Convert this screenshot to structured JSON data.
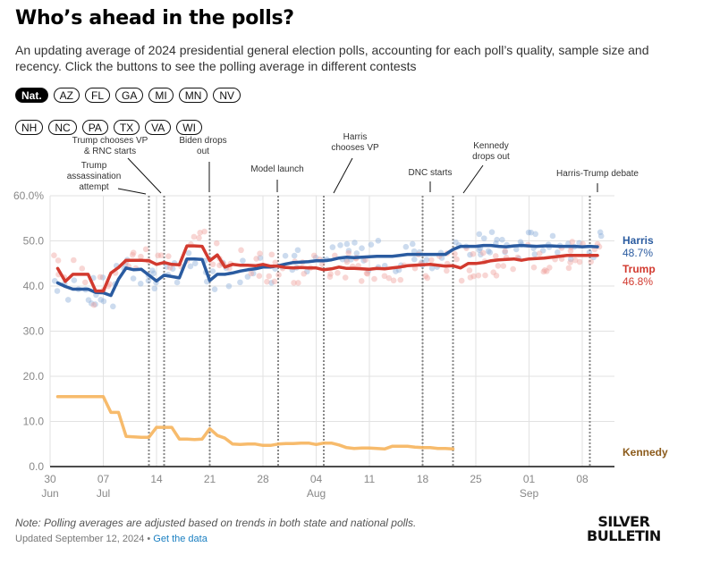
{
  "header": {
    "title": "Who’s ahead in the polls?",
    "subtitle": "An updating average of 2024 presidential general election polls, accounting for each poll’s quality, sample size and recency. Click the buttons to see the polling average in different contests"
  },
  "contest_buttons": {
    "row1": [
      {
        "label": "Nat.",
        "active": true
      },
      {
        "label": "AZ",
        "active": false
      },
      {
        "label": "FL",
        "active": false
      },
      {
        "label": "GA",
        "active": false
      },
      {
        "label": "MI",
        "active": false
      },
      {
        "label": "MN",
        "active": false
      },
      {
        "label": "NV",
        "active": false
      }
    ],
    "row2": [
      {
        "label": "NH",
        "active": false
      },
      {
        "label": "NC",
        "active": false
      },
      {
        "label": "PA",
        "active": false
      },
      {
        "label": "TX",
        "active": false
      },
      {
        "label": "VA",
        "active": false
      },
      {
        "label": "WI",
        "active": false
      }
    ]
  },
  "chart_data": {
    "type": "line",
    "title": "",
    "xlabel": "",
    "ylabel": "",
    "x_start": "2024-06-30",
    "x_range_days": [
      0,
      73
    ],
    "ylim": [
      0,
      60
    ],
    "y_ticks": [
      {
        "value": 60,
        "label": "60.0%"
      },
      {
        "value": 50,
        "label": "50.0"
      },
      {
        "value": 40,
        "label": "40.0"
      },
      {
        "value": 30,
        "label": "30.0"
      },
      {
        "value": 20,
        "label": "20.0"
      },
      {
        "value": 10,
        "label": "10.0"
      },
      {
        "value": 0,
        "label": "0.0"
      }
    ],
    "x_ticks": [
      {
        "day": 0,
        "label": "30",
        "month": "Jun"
      },
      {
        "day": 7,
        "label": "07",
        "month": "Jul"
      },
      {
        "day": 14,
        "label": "14",
        "month": ""
      },
      {
        "day": 21,
        "label": "21",
        "month": ""
      },
      {
        "day": 28,
        "label": "28",
        "month": ""
      },
      {
        "day": 35,
        "label": "04",
        "month": "Aug"
      },
      {
        "day": 42,
        "label": "11",
        "month": ""
      },
      {
        "day": 49,
        "label": "18",
        "month": ""
      },
      {
        "day": 56,
        "label": "25",
        "month": ""
      },
      {
        "day": 63,
        "label": "01",
        "month": "Sep"
      },
      {
        "day": 70,
        "label": "08",
        "month": ""
      }
    ],
    "grid": true,
    "series": [
      {
        "name": "Harris",
        "end_label": "48.7%",
        "color": "#2a5ba0",
        "dot_color": "#8fb0da",
        "x": [
          1,
          2,
          3,
          4,
          5,
          6,
          7,
          8,
          9,
          10,
          11,
          12,
          13,
          14,
          15,
          16,
          17,
          18,
          19,
          20,
          21,
          22,
          23,
          24,
          25,
          26,
          27,
          28,
          29,
          30,
          31,
          32,
          33,
          34,
          35,
          36,
          37,
          38,
          39,
          40,
          41,
          42,
          43,
          44,
          45,
          46,
          47,
          48,
          49,
          50,
          51,
          52,
          53,
          54,
          55,
          56,
          57,
          58,
          59,
          60,
          61,
          62,
          63,
          64,
          65,
          66,
          67,
          68,
          69,
          70,
          71,
          72
        ],
        "values": [
          40.7,
          39.9,
          39.3,
          39.3,
          39.3,
          38.6,
          38.5,
          37.9,
          41.5,
          44.0,
          43.6,
          43.7,
          42.4,
          41.1,
          42.4,
          42.1,
          41.8,
          46.0,
          46.0,
          45.9,
          41.2,
          42.6,
          42.6,
          42.9,
          43.3,
          43.6,
          43.8,
          44.2,
          44.2,
          44.5,
          44.9,
          45.2,
          45.3,
          45.4,
          45.6,
          45.6,
          45.8,
          46.2,
          46.4,
          46.3,
          46.4,
          46.5,
          46.6,
          46.6,
          46.6,
          46.8,
          47.0,
          47.0,
          47.0,
          47.0,
          47.0,
          47.0,
          48.1,
          48.8,
          48.8,
          48.8,
          49.0,
          49.0,
          48.8,
          48.7,
          48.9,
          49.0,
          48.9,
          48.8,
          48.9,
          48.9,
          48.8,
          48.8,
          48.8,
          48.7,
          48.8,
          48.7
        ]
      },
      {
        "name": "Trump",
        "end_label": "46.8%",
        "color": "#d23a2f",
        "dot_color": "#f0a5a0",
        "x": [
          1,
          2,
          3,
          4,
          5,
          6,
          7,
          8,
          9,
          10,
          11,
          12,
          13,
          14,
          15,
          16,
          17,
          18,
          19,
          20,
          21,
          22,
          23,
          24,
          25,
          26,
          27,
          28,
          29,
          30,
          31,
          32,
          33,
          34,
          35,
          36,
          37,
          38,
          39,
          40,
          41,
          42,
          43,
          44,
          45,
          46,
          47,
          48,
          49,
          50,
          51,
          52,
          53,
          54,
          55,
          56,
          57,
          58,
          59,
          60,
          61,
          62,
          63,
          64,
          65,
          66,
          67,
          68,
          69,
          70,
          71,
          72
        ],
        "values": [
          43.9,
          41.0,
          42.6,
          42.6,
          42.6,
          38.9,
          38.9,
          42.9,
          44.1,
          45.7,
          45.7,
          45.7,
          45.6,
          44.8,
          45.2,
          44.8,
          44.7,
          48.9,
          48.9,
          48.8,
          45.6,
          46.9,
          44.2,
          44.8,
          44.6,
          44.6,
          44.5,
          44.8,
          44.4,
          44.4,
          44.1,
          44.0,
          44.1,
          44.0,
          44.0,
          43.6,
          43.8,
          44.2,
          43.9,
          43.9,
          43.8,
          43.7,
          43.9,
          43.8,
          44.0,
          44.2,
          44.5,
          44.6,
          44.7,
          44.8,
          44.6,
          44.4,
          44.5,
          44.0,
          45.0,
          45.0,
          45.2,
          45.6,
          45.8,
          45.9,
          46.0,
          45.7,
          46.0,
          46.1,
          46.2,
          46.4,
          46.6,
          46.8,
          46.8,
          46.8,
          46.8,
          46.8
        ]
      },
      {
        "name": "Kennedy",
        "end_label": "",
        "color": "#f6b45c",
        "label_color": "#8b5a1a",
        "x": [
          1,
          2,
          3,
          4,
          5,
          6,
          7,
          8,
          9,
          10,
          11,
          12,
          13,
          14,
          15,
          16,
          17,
          18,
          19,
          20,
          21,
          22,
          23,
          24,
          25,
          26,
          27,
          28,
          29,
          30,
          31,
          32,
          33,
          34,
          35,
          36,
          37,
          38,
          39,
          40,
          41,
          42,
          43,
          44,
          45,
          46,
          47,
          48,
          49,
          50,
          51,
          52,
          53
        ],
        "values": [
          15.5,
          15.5,
          15.5,
          15.5,
          15.5,
          15.5,
          15.5,
          12.0,
          12.0,
          6.7,
          6.6,
          6.5,
          6.5,
          8.7,
          8.7,
          8.7,
          6.1,
          6.1,
          6.0,
          6.1,
          8.4,
          6.9,
          6.3,
          5.0,
          4.9,
          5.0,
          5.0,
          4.7,
          4.7,
          5.0,
          5.1,
          5.1,
          5.2,
          5.2,
          4.9,
          5.2,
          5.2,
          4.8,
          4.2,
          4.0,
          4.1,
          4.1,
          4.0,
          3.9,
          4.5,
          4.5,
          4.5,
          4.3,
          4.2,
          4.2,
          4.0,
          4.0,
          3.9
        ]
      }
    ],
    "events": [
      {
        "day": 13,
        "label": [
          "Trump",
          "assassination",
          "attempt"
        ]
      },
      {
        "day": 15,
        "label": [
          "Trump chooses VP",
          "& RNC starts"
        ]
      },
      {
        "day": 21,
        "label": [
          "Biden drops",
          "out"
        ]
      },
      {
        "day": 30,
        "label": [
          "Model launch"
        ]
      },
      {
        "day": 36,
        "label": [
          "Harris",
          "chooses VP"
        ]
      },
      {
        "day": 49,
        "label": [
          "DNC starts"
        ]
      },
      {
        "day": 53,
        "label": [
          "Kennedy",
          "drops out"
        ]
      },
      {
        "day": 71,
        "label": [
          "Harris-Trump debate"
        ]
      }
    ]
  },
  "footer": {
    "note": "Note: Polling averages are adjusted based on trends in both state and national polls.",
    "updated": "Updated September 12, 2024 • ",
    "data_link": "Get the data",
    "logo_line1": "SILVER",
    "logo_line2": "BULLETIN"
  }
}
